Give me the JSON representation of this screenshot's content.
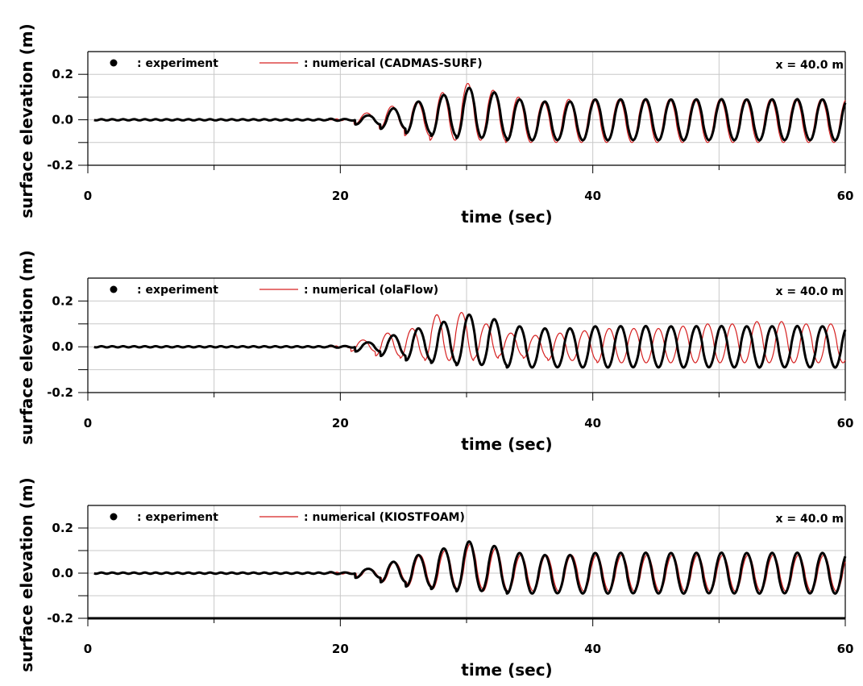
{
  "chart_data": [
    {
      "type": "line",
      "xlabel": "time (sec)",
      "ylabel": "surface elevation (m)",
      "xlim": [
        0,
        60
      ],
      "ylim": [
        -0.2,
        0.3
      ],
      "xticks": [
        "0",
        "20",
        "40",
        "60"
      ],
      "yticks": [
        "-0.2",
        "0.0",
        "0.2"
      ],
      "grid": true,
      "legend_position": "top-left",
      "annotation": "x = 40.0 m",
      "legend": {
        "experiment": ": experiment",
        "numerical": ": numerical (CADMAS-SURF)"
      },
      "series": [
        {
          "name": ": experiment",
          "color": "#000000",
          "style": "thick-line",
          "wave": {
            "start": 19,
            "period": 2.0,
            "first_crest": 22.2,
            "crests": [
              0.02,
              0.05,
              0.08,
              0.11,
              0.14,
              0.12,
              0.09,
              0.08,
              0.08,
              0.09,
              0.09,
              0.09,
              0.09,
              0.09,
              0.09,
              0.09,
              0.09,
              0.09,
              0.09
            ],
            "troughs": [
              -0.02,
              -0.04,
              -0.06,
              -0.07,
              -0.08,
              -0.08,
              -0.09,
              -0.09,
              -0.09,
              -0.09,
              -0.09,
              -0.09,
              -0.09,
              -0.09,
              -0.09,
              -0.09,
              -0.09,
              -0.09,
              -0.09
            ]
          }
        },
        {
          "name": ": numerical (CADMAS-SURF)",
          "color": "#d62020",
          "style": "thin-line",
          "wave": {
            "start": 19.5,
            "period": 2.0,
            "first_crest": 22.1,
            "crests": [
              0.03,
              0.06,
              0.08,
              0.12,
              0.16,
              0.13,
              0.1,
              0.08,
              0.09,
              0.09,
              0.09,
              0.09,
              0.09,
              0.09,
              0.09,
              0.09,
              0.09,
              0.09,
              0.09
            ],
            "troughs": [
              -0.02,
              -0.04,
              -0.07,
              -0.09,
              -0.09,
              -0.09,
              -0.1,
              -0.1,
              -0.1,
              -0.1,
              -0.1,
              -0.1,
              -0.1,
              -0.1,
              -0.1,
              -0.1,
              -0.1,
              -0.1,
              -0.1
            ]
          }
        }
      ]
    },
    {
      "type": "line",
      "xlabel": "time (sec)",
      "ylabel": "surface elevation (m)",
      "xlim": [
        0,
        60
      ],
      "ylim": [
        -0.2,
        0.3
      ],
      "xticks": [
        "0",
        "20",
        "40",
        "60"
      ],
      "yticks": [
        "-0.2",
        "0.0",
        "0.2"
      ],
      "grid": true,
      "legend_position": "top-left",
      "annotation": "x = 40.0 m",
      "legend": {
        "experiment": ": experiment",
        "numerical": ": numerical (olaFlow)"
      },
      "series": [
        {
          "name": ": experiment",
          "color": "#000000",
          "style": "thick-line",
          "wave": {
            "start": 19,
            "period": 2.0,
            "first_crest": 22.2,
            "crests": [
              0.02,
              0.05,
              0.08,
              0.11,
              0.14,
              0.12,
              0.09,
              0.08,
              0.08,
              0.09,
              0.09,
              0.09,
              0.09,
              0.09,
              0.09,
              0.09,
              0.09,
              0.09,
              0.09
            ],
            "troughs": [
              -0.02,
              -0.04,
              -0.06,
              -0.07,
              -0.08,
              -0.08,
              -0.09,
              -0.09,
              -0.09,
              -0.09,
              -0.09,
              -0.09,
              -0.09,
              -0.09,
              -0.09,
              -0.09,
              -0.09,
              -0.09,
              -0.09
            ]
          }
        },
        {
          "name": ": numerical (olaFlow)",
          "color": "#d62020",
          "style": "thin-line",
          "wave": {
            "start": 19.5,
            "period": 1.95,
            "first_crest": 21.8,
            "crests": [
              0.03,
              0.06,
              0.08,
              0.14,
              0.15,
              0.1,
              0.06,
              0.05,
              0.06,
              0.07,
              0.08,
              0.08,
              0.08,
              0.09,
              0.1,
              0.1,
              0.11,
              0.11,
              0.1
            ],
            "troughs": [
              -0.02,
              -0.04,
              -0.05,
              -0.06,
              -0.06,
              -0.05,
              -0.04,
              -0.05,
              -0.06,
              -0.06,
              -0.07,
              -0.07,
              -0.07,
              -0.07,
              -0.07,
              -0.07,
              -0.07,
              -0.07,
              -0.07
            ]
          }
        }
      ]
    },
    {
      "type": "line",
      "xlabel": "time (sec)",
      "ylabel": "surface elevation (m)",
      "xlim": [
        0,
        60
      ],
      "ylim": [
        -0.2,
        0.3
      ],
      "xticks": [
        "0",
        "20",
        "40",
        "60"
      ],
      "yticks": [
        "-0.2",
        "0.0",
        "0.2"
      ],
      "grid": true,
      "legend_position": "top-left",
      "annotation": "x = 40.0 m",
      "legend": {
        "experiment": ": experiment",
        "numerical": ": numerical (KIOSTFOAM)"
      },
      "series": [
        {
          "name": ": experiment",
          "color": "#000000",
          "style": "thick-line",
          "wave": {
            "start": 19,
            "period": 2.0,
            "first_crest": 22.2,
            "crests": [
              0.02,
              0.05,
              0.08,
              0.11,
              0.14,
              0.12,
              0.09,
              0.08,
              0.08,
              0.09,
              0.09,
              0.09,
              0.09,
              0.09,
              0.09,
              0.09,
              0.09,
              0.09,
              0.09
            ],
            "troughs": [
              -0.02,
              -0.04,
              -0.06,
              -0.07,
              -0.08,
              -0.08,
              -0.09,
              -0.09,
              -0.09,
              -0.09,
              -0.09,
              -0.09,
              -0.09,
              -0.09,
              -0.09,
              -0.09,
              -0.09,
              -0.09,
              -0.09
            ]
          }
        },
        {
          "name": ": numerical (KIOSTFOAM)",
          "color": "#d62020",
          "style": "thin-line",
          "wave": {
            "start": 19.5,
            "period": 2.0,
            "first_crest": 22.3,
            "crests": [
              0.02,
              0.05,
              0.08,
              0.1,
              0.13,
              0.11,
              0.08,
              0.08,
              0.08,
              0.08,
              0.08,
              0.08,
              0.08,
              0.08,
              0.08,
              0.08,
              0.08,
              0.08,
              0.08
            ],
            "troughs": [
              -0.02,
              -0.04,
              -0.06,
              -0.07,
              -0.07,
              -0.08,
              -0.08,
              -0.08,
              -0.08,
              -0.08,
              -0.08,
              -0.08,
              -0.08,
              -0.08,
              -0.08,
              -0.08,
              -0.08,
              -0.08,
              -0.08
            ]
          }
        }
      ]
    }
  ]
}
